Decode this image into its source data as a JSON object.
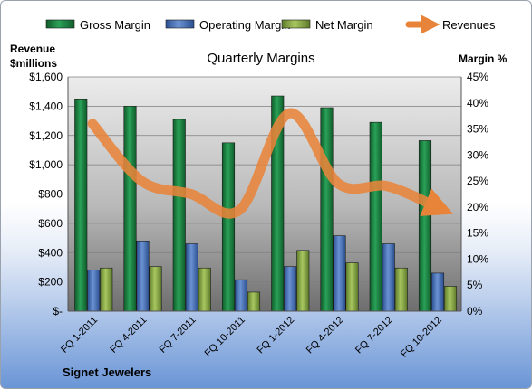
{
  "company": "Signet Jewelers",
  "chart_data": {
    "type": "bar",
    "title": "Quarterly Margins",
    "ylabel_left_line1": "Revenue",
    "ylabel_left_line2": "$millions",
    "ylabel_right": "Margin %",
    "categories": [
      "FQ 1-2011",
      "FQ 4-2011",
      "FQ 7-2011",
      "FQ 10-2011",
      "FQ 1-2012",
      "FQ 4-2012",
      "FQ 7-2012",
      "FQ 10-2012"
    ],
    "y_left": {
      "min": 0,
      "max": 1600,
      "step": 200,
      "ticks": [
        "$-",
        "$200",
        "$400",
        "$600",
        "$800",
        "$1,000",
        "$1,200",
        "$1,400",
        "$1,600"
      ]
    },
    "y_right": {
      "min": 0,
      "max": 45,
      "step": 5,
      "ticks": [
        "0%",
        "5%",
        "10%",
        "15%",
        "20%",
        "25%",
        "30%",
        "35%",
        "40%",
        "45%"
      ]
    },
    "grid": true,
    "legend_position": "top",
    "series": [
      {
        "name": "Gross Margin",
        "type": "bar",
        "axis": "left",
        "color": "#1e8a45",
        "values": [
          1450,
          1400,
          1310,
          1150,
          1470,
          1390,
          1290,
          1165
        ]
      },
      {
        "name": "Operating Margin",
        "type": "bar",
        "axis": "left",
        "color": "#4a72b8",
        "values": [
          280,
          480,
          460,
          215,
          305,
          515,
          460,
          260
        ]
      },
      {
        "name": "Net Margin",
        "type": "bar",
        "axis": "left",
        "color": "#8bab4a",
        "values": [
          295,
          305,
          295,
          130,
          415,
          330,
          295,
          170
        ]
      },
      {
        "name": "Revenues",
        "type": "line",
        "axis": "right",
        "color": "#e8843a",
        "values": [
          36,
          25,
          22.5,
          19.5,
          38,
          24.5,
          24,
          20
        ]
      }
    ]
  }
}
